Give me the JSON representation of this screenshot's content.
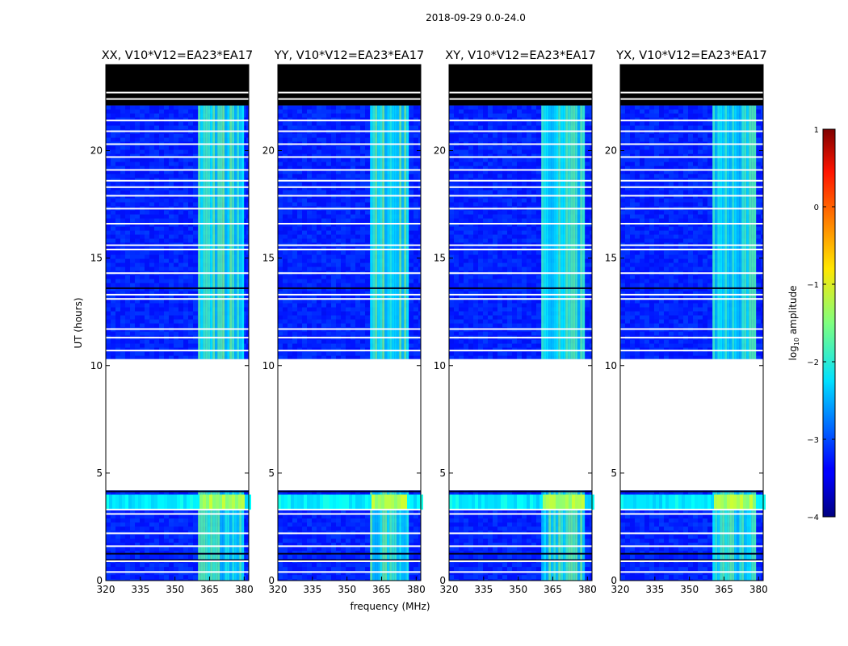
{
  "chart_data": {
    "type": "heatmap",
    "suptitle": "2018-09-29 0.0-24.0",
    "xlabel": "frequency (MHz)",
    "ylabel": "UT (hours)",
    "xlim": [
      320,
      382
    ],
    "ylim": [
      0,
      24
    ],
    "xticks": [
      320,
      335,
      350,
      365,
      380
    ],
    "yticks": [
      0,
      5,
      10,
      15,
      20
    ],
    "colorbar": {
      "label": "log10 amplitude",
      "label_main": "log",
      "label_sub": "10",
      "label_rest": " amplitude",
      "range": [
        -4,
        1
      ],
      "ticks": [
        1,
        0,
        -1,
        -2,
        -3,
        -4
      ],
      "tick_labels": [
        "1",
        "0",
        "−1",
        "−2",
        "−3",
        "−4"
      ],
      "colormap": "jet"
    },
    "panels": [
      {
        "title": "XX, V10*V12=EA23*EA17",
        "pol": "XX",
        "rfi_low": 360,
        "rfi_high": 379
      },
      {
        "title": "YY, V10*V12=EA23*EA17",
        "pol": "YY",
        "rfi_low": 360,
        "rfi_high": 376
      },
      {
        "title": "XY, V10*V12=EA23*EA17",
        "pol": "XY",
        "rfi_low": 360,
        "rfi_high": 378
      },
      {
        "title": "YX, V10*V12=EA23*EA17",
        "pol": "YX",
        "rfi_low": 360,
        "rfi_high": 378
      }
    ],
    "flagged_black_hours": [
      22.1,
      24.0
    ],
    "no_data_hours": [
      4.2,
      10.3
    ],
    "data_segments_hours": [
      [
        0.0,
        4.2
      ],
      [
        10.3,
        22.1
      ]
    ],
    "flagged_white_row_hours": [
      0.4,
      0.9,
      1.6,
      2.2,
      3.1,
      3.3,
      10.7,
      11.3,
      11.7,
      13.1,
      13.3,
      14.3,
      15.4,
      15.6,
      16.6,
      17.3,
      17.9,
      18.3,
      18.6,
      19.1,
      19.7,
      20.3,
      20.9,
      21.4,
      22.4,
      22.7
    ],
    "baseline_log_amplitude": -3.2,
    "rfi_log_amplitude": -2.0,
    "band_log_amplitude_0_to_4h": -2.2
  }
}
